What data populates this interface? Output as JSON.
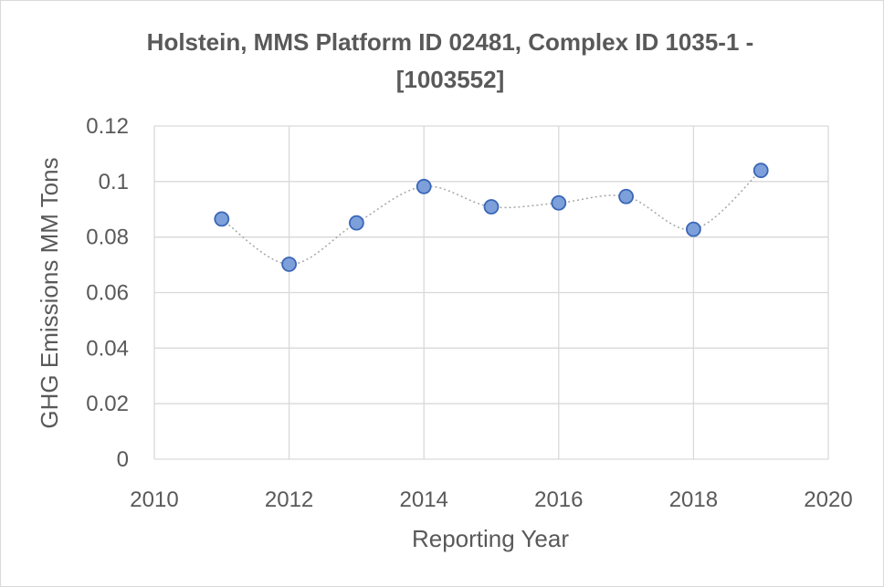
{
  "chart_data": {
    "type": "scatter",
    "title_lines": [
      "Holstein, MMS Platform ID 02481, Complex ID 1035-1 -",
      "[1003552]"
    ],
    "xlabel": "Reporting Year",
    "ylabel": "GHG Emissions MM Tons",
    "xlim": [
      2010,
      2020
    ],
    "ylim": [
      0,
      0.12
    ],
    "x_ticks": [
      2010,
      2012,
      2014,
      2016,
      2018,
      2020
    ],
    "y_ticks": [
      0,
      0.02,
      0.04,
      0.06,
      0.08,
      0.1,
      0.12
    ],
    "x_tick_labels": [
      "2010",
      "2012",
      "2014",
      "2016",
      "2018",
      "2020"
    ],
    "y_tick_labels": [
      "0",
      "0.02",
      "0.04",
      "0.06",
      "0.08",
      "0.1",
      "0.12"
    ],
    "grid": true,
    "smooth_line": true,
    "x": [
      2011,
      2012,
      2013,
      2014,
      2015,
      2016,
      2017,
      2018,
      2019
    ],
    "y": [
      0.0865,
      0.0702,
      0.0851,
      0.0982,
      0.0909,
      0.0923,
      0.0946,
      0.0828,
      0.104
    ],
    "colors": {
      "marker_fill": "#7da0da",
      "marker_stroke": "#3a66b8",
      "line": "#a6a6a6",
      "grid": "#d9d9d9",
      "text": "#595959"
    }
  }
}
